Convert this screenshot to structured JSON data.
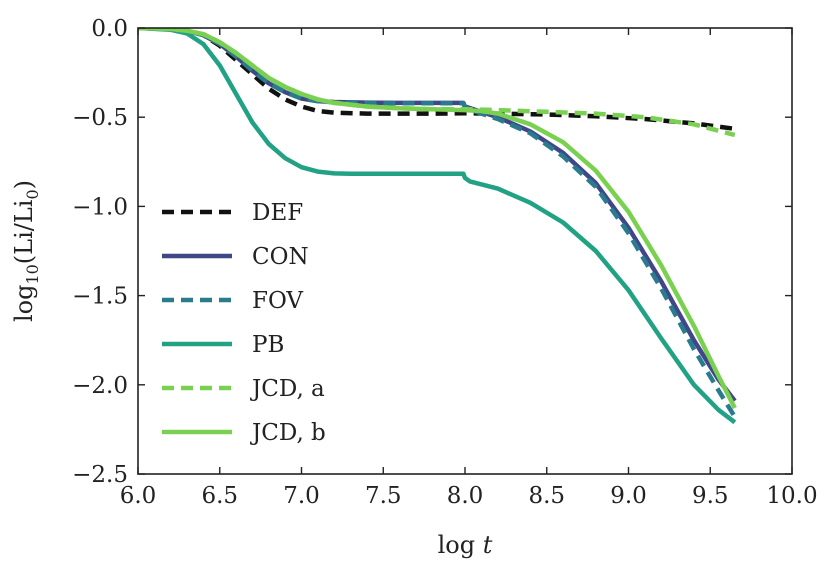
{
  "chart_data": {
    "type": "line",
    "title": "",
    "xlabel": "log t",
    "ylabel": "log10(Li/Li0)",
    "xlim": [
      6.0,
      10.0
    ],
    "ylim": [
      -2.5,
      0.0
    ],
    "x_ticks": [
      6.0,
      6.5,
      7.0,
      7.5,
      8.0,
      8.5,
      9.0,
      9.5,
      10.0
    ],
    "x_tick_labels": [
      "6.0",
      "6.5",
      "7.0",
      "7.5",
      "8.0",
      "8.5",
      "9.0",
      "9.5",
      "10.0"
    ],
    "y_ticks": [
      0.0,
      -0.5,
      -1.0,
      -1.5,
      -2.0,
      -2.5
    ],
    "y_tick_labels": [
      "0.0",
      "−0.5",
      "−1.0",
      "−1.5",
      "−2.0",
      "−2.5"
    ],
    "grid": false,
    "legend_position": "lower-left",
    "series": [
      {
        "name": "DEF",
        "color": "#111111",
        "style": "dashed",
        "x": [
          6.0,
          6.2,
          6.3,
          6.4,
          6.5,
          6.6,
          6.7,
          6.8,
          6.9,
          7.0,
          7.1,
          7.2,
          7.4,
          7.6,
          7.8,
          8.0,
          8.2,
          8.5,
          8.8,
          9.1,
          9.4,
          9.65
        ],
        "y": [
          0.0,
          -0.005,
          -0.015,
          -0.04,
          -0.1,
          -0.18,
          -0.26,
          -0.34,
          -0.4,
          -0.44,
          -0.465,
          -0.475,
          -0.48,
          -0.48,
          -0.48,
          -0.478,
          -0.48,
          -0.485,
          -0.495,
          -0.51,
          -0.535,
          -0.565
        ]
      },
      {
        "name": "CON",
        "color": "#3f4788",
        "style": "solid",
        "x": [
          6.0,
          6.2,
          6.3,
          6.4,
          6.5,
          6.6,
          6.7,
          6.8,
          6.9,
          7.0,
          7.1,
          7.2,
          7.4,
          7.6,
          7.8,
          7.99,
          8.0,
          8.1,
          8.2,
          8.4,
          8.6,
          8.8,
          9.0,
          9.2,
          9.4,
          9.55,
          9.65
        ],
        "y": [
          0.0,
          -0.005,
          -0.015,
          -0.04,
          -0.09,
          -0.16,
          -0.24,
          -0.31,
          -0.36,
          -0.395,
          -0.41,
          -0.415,
          -0.418,
          -0.42,
          -0.42,
          -0.42,
          -0.44,
          -0.47,
          -0.5,
          -0.58,
          -0.7,
          -0.87,
          -1.12,
          -1.42,
          -1.75,
          -1.97,
          -2.09
        ]
      },
      {
        "name": "FOV",
        "color": "#2a7b8e",
        "style": "dashed",
        "x": [
          6.0,
          6.2,
          6.3,
          6.4,
          6.5,
          6.6,
          6.7,
          6.8,
          6.9,
          7.0,
          7.1,
          7.2,
          7.4,
          7.6,
          7.8,
          7.99,
          8.0,
          8.1,
          8.2,
          8.4,
          8.6,
          8.8,
          9.0,
          9.2,
          9.4,
          9.55,
          9.65
        ],
        "y": [
          0.0,
          -0.005,
          -0.015,
          -0.04,
          -0.09,
          -0.16,
          -0.24,
          -0.31,
          -0.36,
          -0.395,
          -0.41,
          -0.417,
          -0.42,
          -0.422,
          -0.422,
          -0.422,
          -0.445,
          -0.48,
          -0.51,
          -0.59,
          -0.72,
          -0.89,
          -1.15,
          -1.46,
          -1.8,
          -2.03,
          -2.18
        ]
      },
      {
        "name": "PB",
        "color": "#22a284",
        "style": "solid",
        "x": [
          6.0,
          6.2,
          6.3,
          6.4,
          6.5,
          6.6,
          6.7,
          6.8,
          6.9,
          7.0,
          7.1,
          7.2,
          7.3,
          7.5,
          7.7,
          7.99,
          8.0,
          8.03,
          8.2,
          8.4,
          8.6,
          8.8,
          9.0,
          9.2,
          9.4,
          9.55,
          9.65
        ],
        "y": [
          0.0,
          -0.01,
          -0.03,
          -0.09,
          -0.21,
          -0.37,
          -0.53,
          -0.65,
          -0.73,
          -0.78,
          -0.805,
          -0.815,
          -0.817,
          -0.817,
          -0.817,
          -0.817,
          -0.84,
          -0.86,
          -0.9,
          -0.98,
          -1.09,
          -1.25,
          -1.47,
          -1.74,
          -2.0,
          -2.14,
          -2.21
        ]
      },
      {
        "name": "JCD, a",
        "color": "#7ad151",
        "style": "dashed",
        "x": [
          6.0,
          6.2,
          6.3,
          6.4,
          6.5,
          6.6,
          6.7,
          6.8,
          6.9,
          7.0,
          7.1,
          7.2,
          7.4,
          7.6,
          7.8,
          8.0,
          8.2,
          8.5,
          8.8,
          9.1,
          9.4,
          9.65
        ],
        "y": [
          0.0,
          -0.005,
          -0.015,
          -0.035,
          -0.08,
          -0.14,
          -0.21,
          -0.28,
          -0.33,
          -0.37,
          -0.4,
          -0.42,
          -0.44,
          -0.45,
          -0.455,
          -0.455,
          -0.46,
          -0.47,
          -0.48,
          -0.5,
          -0.54,
          -0.6
        ]
      },
      {
        "name": "JCD, b",
        "color": "#7ad151",
        "style": "solid",
        "x": [
          6.0,
          6.2,
          6.3,
          6.4,
          6.5,
          6.6,
          6.7,
          6.8,
          6.9,
          7.0,
          7.1,
          7.2,
          7.4,
          7.6,
          7.8,
          8.0,
          8.1,
          8.2,
          8.4,
          8.6,
          8.8,
          9.0,
          9.2,
          9.4,
          9.55,
          9.65
        ],
        "y": [
          0.0,
          -0.005,
          -0.015,
          -0.035,
          -0.08,
          -0.14,
          -0.21,
          -0.28,
          -0.33,
          -0.37,
          -0.4,
          -0.42,
          -0.44,
          -0.45,
          -0.455,
          -0.46,
          -0.465,
          -0.48,
          -0.54,
          -0.64,
          -0.8,
          -1.03,
          -1.33,
          -1.67,
          -1.95,
          -2.13
        ]
      }
    ]
  }
}
